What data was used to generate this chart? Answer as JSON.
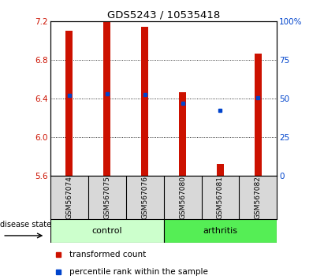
{
  "title": "GDS5243 / 10535418",
  "samples": [
    "GSM567074",
    "GSM567075",
    "GSM567076",
    "GSM567080",
    "GSM567081",
    "GSM567082"
  ],
  "bar_bottom": 5.6,
  "bar_tops": [
    7.1,
    7.2,
    7.14,
    6.46,
    5.72,
    6.86
  ],
  "blue_dots_y": [
    6.43,
    6.45,
    6.44,
    6.35,
    6.28,
    6.41
  ],
  "ylim_left": [
    5.6,
    7.2
  ],
  "ylim_right": [
    0,
    100
  ],
  "yticks_left": [
    5.6,
    6.0,
    6.4,
    6.8,
    7.2
  ],
  "yticks_right": [
    0,
    25,
    50,
    75,
    100
  ],
  "ytick_labels_right": [
    "0",
    "25",
    "50",
    "75",
    "100%"
  ],
  "bar_color": "#cc1100",
  "dot_color": "#0044cc",
  "bar_width": 0.18,
  "bg_color": "#d8d8d8",
  "plot_bg": "#ffffff",
  "tick_label_color_left": "#cc1100",
  "tick_label_color_right": "#0044cc",
  "legend_items": [
    "transformed count",
    "percentile rank within the sample"
  ],
  "disease_state_label": "disease state",
  "control_color": "#ccffcc",
  "arthritis_color": "#55ee55"
}
